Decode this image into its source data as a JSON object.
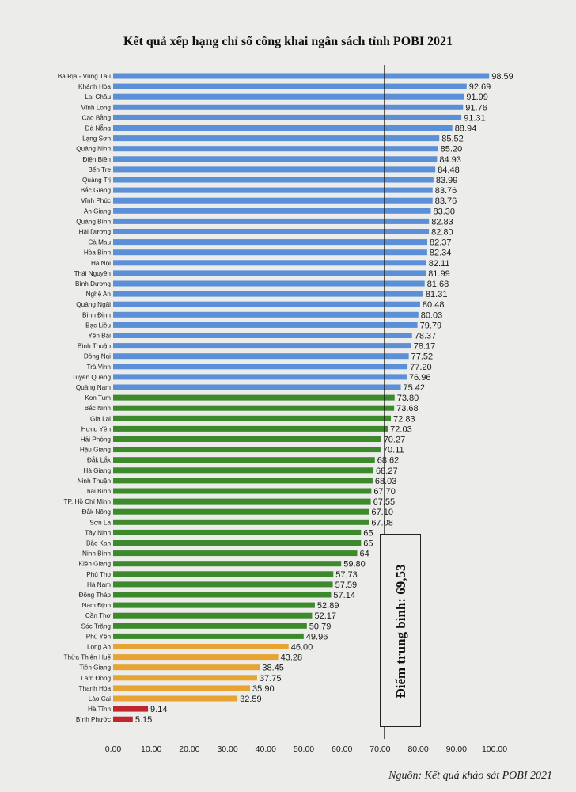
{
  "title": "Kết quả xếp hạng chỉ số công khai ngân sách tỉnh POBI 2021",
  "source": "Nguồn: Kết quả khảo sát POBI 2021",
  "average_label": "Điểm trung bình: 69,53",
  "colors": {
    "blue": "#5b8fd8",
    "green": "#3d8a2c",
    "orange": "#e8a432",
    "red": "#c0272d"
  },
  "chart_data": {
    "type": "bar",
    "orientation": "horizontal",
    "title": "Kết quả xếp hạng chỉ số công khai ngân sách tỉnh POBI 2021",
    "xlim": [
      0,
      100
    ],
    "xticks": [
      "0.00",
      "10.00",
      "20.00",
      "30.00",
      "40.00",
      "50.00",
      "60.00",
      "70.00",
      "80.00",
      "90.00",
      "100.00"
    ],
    "average": 69.53,
    "categories": [
      "Bà Rịa - Vũng Tàu",
      "Khánh Hòa",
      "Lai Châu",
      "Vĩnh Long",
      "Cao Bằng",
      "Đà Nẵng",
      "Lạng Sơn",
      "Quảng Ninh",
      "Điện Biên",
      "Bến Tre",
      "Quảng Trị",
      "Bắc Giang",
      "Vĩnh Phúc",
      "An Giang",
      "Quảng Bình",
      "Hải Dương",
      "Cà Mau",
      "Hòa Bình",
      "Hà Nội",
      "Thái Nguyên",
      "Bình Dương",
      "Nghệ An",
      "Quảng Ngãi",
      "Bình Định",
      "Bạc Liêu",
      "Yên Bái",
      "Bình Thuận",
      "Đồng Nai",
      "Trà Vinh",
      "Tuyên Quang",
      "Quảng Nam",
      "Kon Tum",
      "Bắc Ninh",
      "Gia Lai",
      "Hưng Yên",
      "Hải Phòng",
      "Hậu Giang",
      "Đắk Lắk",
      "Hà Giang",
      "Ninh Thuận",
      "Thái Bình",
      "TP. Hồ Chí Minh",
      "Đắk Nông",
      "Sơn La",
      "Tây Ninh",
      "Bắc Kạn",
      "Ninh Bình",
      "Kiên Giang",
      "Phú Thọ",
      "Hà Nam",
      "Đồng Tháp",
      "Nam Định",
      "Cần Thơ",
      "Sóc Trăng",
      "Phú Yên",
      "Long An",
      "Thừa Thiên Huế",
      "Tiền Giang",
      "Lâm Đồng",
      "Thanh Hóa",
      "Lào Cai",
      "Hà Tĩnh",
      "Bình Phước"
    ],
    "values": [
      98.59,
      92.69,
      91.99,
      91.76,
      91.31,
      88.94,
      85.52,
      85.2,
      84.93,
      84.48,
      83.99,
      83.76,
      83.76,
      83.3,
      82.83,
      82.8,
      82.37,
      82.34,
      82.11,
      81.99,
      81.68,
      81.31,
      80.48,
      80.03,
      79.79,
      78.37,
      78.17,
      77.52,
      77.2,
      76.96,
      75.42,
      73.8,
      73.68,
      72.83,
      72.03,
      70.27,
      70.11,
      68.62,
      68.27,
      68.03,
      67.7,
      67.55,
      67.1,
      67.08,
      65,
      65,
      64,
      59.8,
      57.73,
      57.59,
      57.14,
      52.89,
      52.17,
      50.79,
      49.96,
      46.0,
      43.28,
      38.45,
      37.75,
      35.9,
      32.59,
      9.14,
      5.15
    ],
    "value_labels": [
      "98.59",
      "92.69",
      "91.99",
      "91.76",
      "91.31",
      "88.94",
      "85.52",
      "85.20",
      "84.93",
      "84.48",
      "83.99",
      "83.76",
      "83.76",
      "83.30",
      "82.83",
      "82.80",
      "82.37",
      "82.34",
      "82.11",
      "81.99",
      "81.68",
      "81.31",
      "80.48",
      "80.03",
      "79.79",
      "78.37",
      "78.17",
      "77.52",
      "77.20",
      "76.96",
      "75.42",
      "73.80",
      "73.68",
      "72.83",
      "72.03",
      "70.27",
      "70.11",
      "68.62",
      "68.27",
      "68.03",
      "67.70",
      "67.55",
      "67.10",
      "67.08",
      "65",
      "65",
      "64",
      "59.80",
      "57.73",
      "57.59",
      "57.14",
      "52.89",
      "52.17",
      "50.79",
      "49.96",
      "46.00",
      "43.28",
      "38.45",
      "37.75",
      "35.90",
      "32.59",
      "9.14",
      "5.15"
    ],
    "bar_colors": [
      "blue",
      "blue",
      "blue",
      "blue",
      "blue",
      "blue",
      "blue",
      "blue",
      "blue",
      "blue",
      "blue",
      "blue",
      "blue",
      "blue",
      "blue",
      "blue",
      "blue",
      "blue",
      "blue",
      "blue",
      "blue",
      "blue",
      "blue",
      "blue",
      "blue",
      "blue",
      "blue",
      "blue",
      "blue",
      "blue",
      "blue",
      "green",
      "green",
      "green",
      "green",
      "green",
      "green",
      "green",
      "green",
      "green",
      "green",
      "green",
      "green",
      "green",
      "green",
      "green",
      "green",
      "green",
      "green",
      "green",
      "green",
      "green",
      "green",
      "green",
      "green",
      "orange",
      "orange",
      "orange",
      "orange",
      "orange",
      "orange",
      "red",
      "red"
    ],
    "grid": false,
    "legend": "none"
  }
}
